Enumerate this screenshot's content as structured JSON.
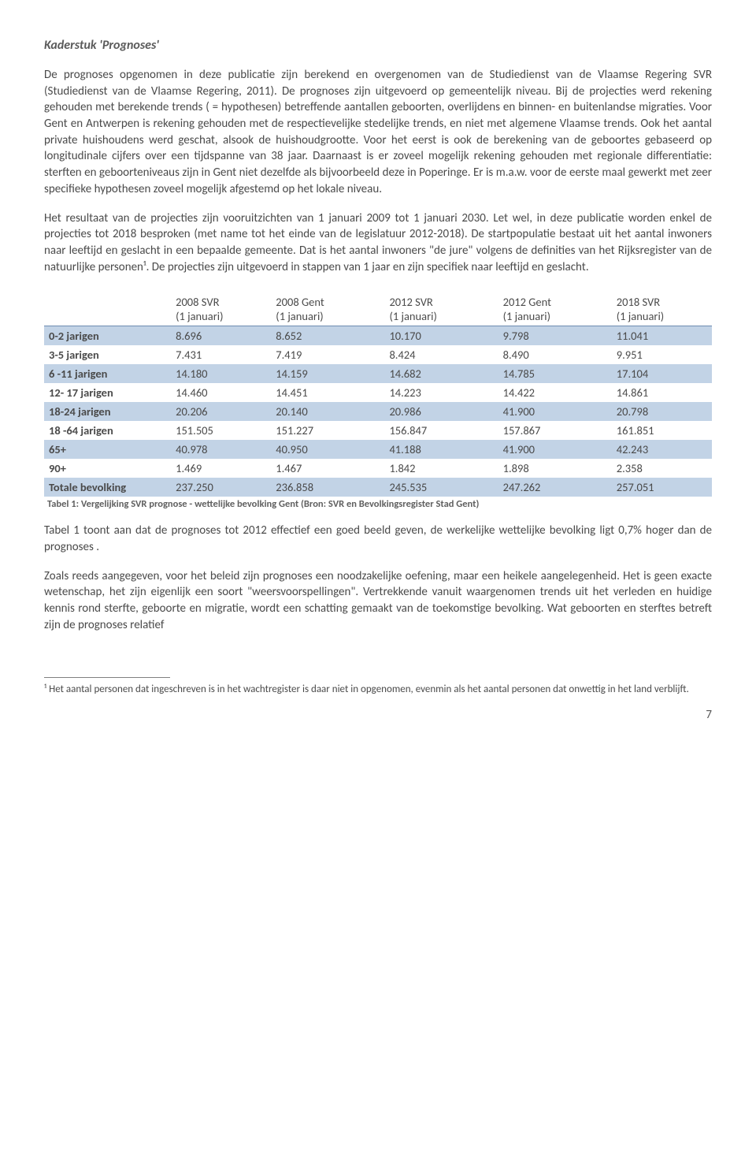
{
  "title": "Kaderstuk 'Prognoses'",
  "para1": "De prognoses opgenomen in deze publicatie zijn berekend en overgenomen van de Studiedienst van de Vlaamse Regering SVR (Studiedienst van de Vlaamse Regering, 2011). De prognoses zijn uitgevoerd op gemeentelijk niveau. Bij de projecties werd rekening gehouden met berekende trends ( = hypothesen) betreffende aantallen geboorten, overlijdens en binnen- en buitenlandse migraties. Voor Gent en Antwerpen is rekening gehouden met de respectievelijke stedelijke trends, en niet met algemene Vlaamse trends. Ook het aantal private huishoudens werd geschat, alsook de huishoudgrootte. Voor het eerst is ook de berekening van de geboortes gebaseerd op longitudinale cijfers over een tijdspanne van 38 jaar. Daarnaast is er zoveel mogelijk rekening gehouden met regionale differentiatie: sterften en geboorteniveaus zijn in Gent niet dezelfde als bijvoorbeeld deze in Poperinge. Er is m.a.w. voor de eerste maal gewerkt met zeer specifieke hypothesen zoveel mogelijk afgestemd op het lokale niveau.",
  "para2": "Het resultaat van de projecties zijn vooruitzichten van 1 januari 2009 tot 1 januari 2030. Let wel, in deze publicatie worden enkel de projecties tot 2018 besproken (met name tot het einde van de legislatuur 2012-2018). De startpopulatie bestaat uit het aantal inwoners naar leeftijd en geslacht in een bepaalde gemeente. Dat is het aantal inwoners \"de jure\" volgens de definities van het Rijksregister van de natuurlijke personen¹. De projecties zijn uitgevoerd in stappen van 1 jaar en zijn specifiek naar leeftijd en geslacht.",
  "table": {
    "columns": [
      {
        "h1": "",
        "h2": ""
      },
      {
        "h1": "2008 SVR",
        "h2": "(1 januari)"
      },
      {
        "h1": "2008 Gent",
        "h2": "(1 januari)"
      },
      {
        "h1": "2012 SVR",
        "h2": "(1 januari)"
      },
      {
        "h1": "2012 Gent",
        "h2": "(1 januari)"
      },
      {
        "h1": "2018 SVR",
        "h2": "(1 januari)"
      }
    ],
    "rows": [
      {
        "label": "0-2 jarigen",
        "c": [
          "8.696",
          "8.652",
          "10.170",
          "9.798",
          "11.041"
        ],
        "shaded": true
      },
      {
        "label": "3-5 jarigen",
        "c": [
          "7.431",
          "7.419",
          "8.424",
          "8.490",
          "9.951"
        ],
        "shaded": false
      },
      {
        "label": "6 -11 jarigen",
        "c": [
          "14.180",
          "14.159",
          "14.682",
          "14.785",
          "17.104"
        ],
        "shaded": true
      },
      {
        "label": "12- 17 jarigen",
        "c": [
          "14.460",
          "14.451",
          "14.223",
          "14.422",
          "14.861"
        ],
        "shaded": false
      },
      {
        "label": "18-24 jarigen",
        "c": [
          "20.206",
          "20.140",
          "20.986",
          "41.900",
          "20.798"
        ],
        "shaded": true
      },
      {
        "label": "18 -64 jarigen",
        "c": [
          "151.505",
          "151.227",
          "156.847",
          "157.867",
          "161.851"
        ],
        "shaded": false
      },
      {
        "label": "65+",
        "c": [
          "40.978",
          "40.950",
          "41.188",
          "41.900",
          "42.243"
        ],
        "shaded": true
      },
      {
        "label": "90+",
        "c": [
          "1.469",
          "1.467",
          "1.842",
          "1.898",
          "2.358"
        ],
        "shaded": false
      },
      {
        "label": "Totale bevolking",
        "c": [
          "237.250",
          "236.858",
          "245.535",
          "247.262",
          "257.051"
        ],
        "shaded": true
      }
    ],
    "colors": {
      "shaded": "#c2d3e6",
      "border": "#6e8db2",
      "text": "#4a4a4a"
    },
    "col_widths": [
      "19%",
      "15%",
      "17%",
      "17%",
      "17%",
      "15%"
    ]
  },
  "caption": "Tabel 1: Vergelijking SVR prognose - wettelijke bevolking Gent (Bron: SVR en Bevolkingsregister Stad Gent)",
  "para3": "Tabel 1 toont aan dat de prognoses  tot 2012 effectief een goed beeld geven, de werkelijke wettelijke bevolking ligt 0,7% hoger dan de prognoses .",
  "para4": "Zoals reeds aangegeven, voor het beleid zijn prognoses een noodzakelijke oefening, maar een heikele aangelegenheid. Het is geen exacte wetenschap, het zijn eigenlijk een soort \"weersvoorspellingen\". Vertrekkende vanuit waargenomen trends uit het verleden en huidige kennis rond sterfte, geboorte en migratie, wordt een schatting gemaakt van de toekomstige bevolking. Wat geboorten en sterftes betreft zijn de prognoses relatief",
  "footnote": "¹ Het aantal personen dat ingeschreven is in het wachtregister is daar niet in opgenomen, evenmin als het aantal personen dat onwettig in het land verblijft.",
  "pageNumber": "7"
}
